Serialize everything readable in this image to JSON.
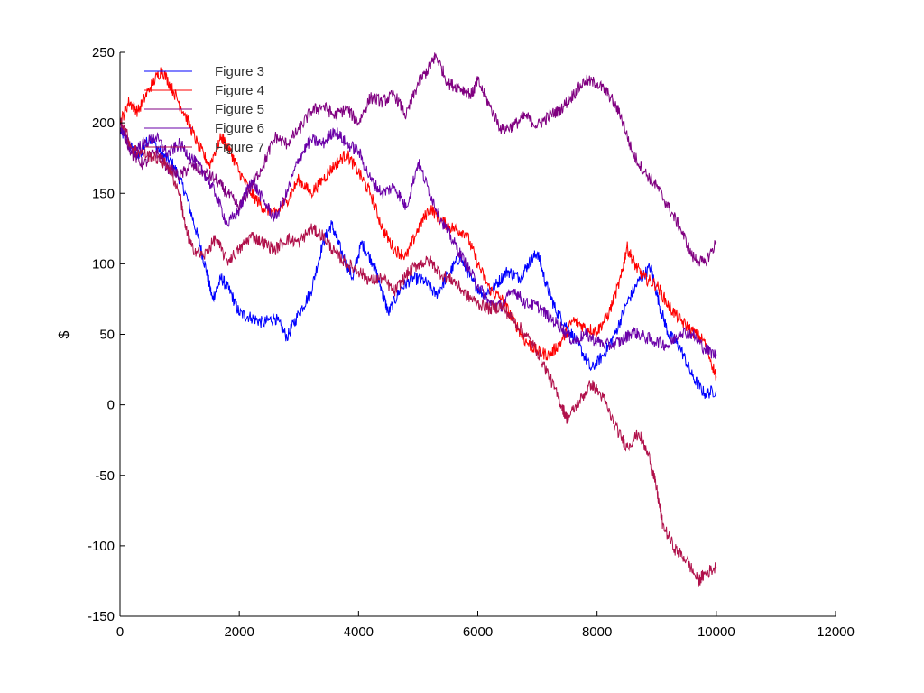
{
  "chart_data": {
    "type": "line",
    "title": "",
    "xlabel": "",
    "ylabel": "$",
    "xlim": [
      0,
      12000
    ],
    "ylim": [
      -150,
      250
    ],
    "xticks": [
      0,
      2000,
      4000,
      6000,
      8000,
      10000,
      12000
    ],
    "yticks": [
      -150,
      -100,
      -50,
      0,
      50,
      100,
      150,
      200,
      250
    ],
    "xtick_labels": [
      "0",
      "2000",
      "4000",
      "6000",
      "8000",
      "10000",
      "12000"
    ],
    "ytick_labels": [
      "-150",
      "-100",
      "-50",
      "0",
      "50",
      "100",
      "150",
      "200",
      "250"
    ],
    "grid": false,
    "legend_position": "top-left",
    "series": [
      {
        "name": "Figure 3",
        "color": "#0000ff",
        "points": [
          [
            0,
            195
          ],
          [
            150,
            185
          ],
          [
            300,
            175
          ],
          [
            500,
            190
          ],
          [
            700,
            178
          ],
          [
            900,
            170
          ],
          [
            1100,
            150
          ],
          [
            1300,
            120
          ],
          [
            1450,
            95
          ],
          [
            1550,
            75
          ],
          [
            1700,
            90
          ],
          [
            1850,
            80
          ],
          [
            2000,
            65
          ],
          [
            2200,
            62
          ],
          [
            2400,
            58
          ],
          [
            2600,
            62
          ],
          [
            2800,
            48
          ],
          [
            3000,
            65
          ],
          [
            3200,
            80
          ],
          [
            3400,
            115
          ],
          [
            3550,
            128
          ],
          [
            3700,
            110
          ],
          [
            3900,
            90
          ],
          [
            4050,
            115
          ],
          [
            4250,
            100
          ],
          [
            4400,
            80
          ],
          [
            4500,
            65
          ],
          [
            4700,
            82
          ],
          [
            4900,
            90
          ],
          [
            5100,
            88
          ],
          [
            5300,
            78
          ],
          [
            5500,
            92
          ],
          [
            5700,
            105
          ],
          [
            5900,
            88
          ],
          [
            6100,
            78
          ],
          [
            6300,
            85
          ],
          [
            6500,
            95
          ],
          [
            6700,
            90
          ],
          [
            6850,
            100
          ],
          [
            7000,
            108
          ],
          [
            7150,
            85
          ],
          [
            7300,
            68
          ],
          [
            7500,
            55
          ],
          [
            7700,
            42
          ],
          [
            7900,
            25
          ],
          [
            8100,
            35
          ],
          [
            8300,
            50
          ],
          [
            8500,
            72
          ],
          [
            8700,
            88
          ],
          [
            8900,
            98
          ],
          [
            9050,
            70
          ],
          [
            9200,
            50
          ],
          [
            9400,
            40
          ],
          [
            9600,
            20
          ],
          [
            9800,
            8
          ],
          [
            10000,
            10
          ]
        ]
      },
      {
        "name": "Figure 4",
        "color": "#ff0000",
        "points": [
          [
            0,
            200
          ],
          [
            150,
            215
          ],
          [
            300,
            208
          ],
          [
            500,
            225
          ],
          [
            700,
            238
          ],
          [
            900,
            222
          ],
          [
            1100,
            205
          ],
          [
            1300,
            185
          ],
          [
            1500,
            170
          ],
          [
            1700,
            190
          ],
          [
            1850,
            180
          ],
          [
            2000,
            165
          ],
          [
            2200,
            150
          ],
          [
            2400,
            140
          ],
          [
            2600,
            135
          ],
          [
            2800,
            145
          ],
          [
            3000,
            160
          ],
          [
            3200,
            150
          ],
          [
            3400,
            160
          ],
          [
            3600,
            170
          ],
          [
            3800,
            178
          ],
          [
            4000,
            165
          ],
          [
            4200,
            150
          ],
          [
            4400,
            125
          ],
          [
            4600,
            110
          ],
          [
            4800,
            105
          ],
          [
            5000,
            125
          ],
          [
            5200,
            140
          ],
          [
            5400,
            130
          ],
          [
            5600,
            125
          ],
          [
            5800,
            122
          ],
          [
            6000,
            100
          ],
          [
            6200,
            82
          ],
          [
            6400,
            75
          ],
          [
            6600,
            60
          ],
          [
            6800,
            45
          ],
          [
            7000,
            38
          ],
          [
            7200,
            35
          ],
          [
            7400,
            45
          ],
          [
            7600,
            60
          ],
          [
            7800,
            55
          ],
          [
            8000,
            52
          ],
          [
            8200,
            65
          ],
          [
            8400,
            90
          ],
          [
            8500,
            112
          ],
          [
            8650,
            98
          ],
          [
            8800,
            90
          ],
          [
            9000,
            85
          ],
          [
            9200,
            70
          ],
          [
            9400,
            60
          ],
          [
            9600,
            52
          ],
          [
            9800,
            45
          ],
          [
            10000,
            20
          ]
        ]
      },
      {
        "name": "Figure 5",
        "color": "#800080",
        "points": [
          [
            0,
            200
          ],
          [
            200,
            178
          ],
          [
            400,
            170
          ],
          [
            600,
            180
          ],
          [
            800,
            168
          ],
          [
            1000,
            162
          ],
          [
            1200,
            170
          ],
          [
            1400,
            165
          ],
          [
            1600,
            160
          ],
          [
            1800,
            150
          ],
          [
            2000,
            140
          ],
          [
            2200,
            155
          ],
          [
            2400,
            170
          ],
          [
            2600,
            190
          ],
          [
            2800,
            185
          ],
          [
            3000,
            195
          ],
          [
            3200,
            208
          ],
          [
            3400,
            212
          ],
          [
            3600,
            205
          ],
          [
            3800,
            210
          ],
          [
            4000,
            200
          ],
          [
            4200,
            218
          ],
          [
            4400,
            215
          ],
          [
            4600,
            220
          ],
          [
            4800,
            205
          ],
          [
            5000,
            228
          ],
          [
            5200,
            240
          ],
          [
            5300,
            248
          ],
          [
            5500,
            228
          ],
          [
            5700,
            225
          ],
          [
            5900,
            220
          ],
          [
            6000,
            230
          ],
          [
            6200,
            212
          ],
          [
            6400,
            195
          ],
          [
            6600,
            198
          ],
          [
            6800,
            205
          ],
          [
            7000,
            198
          ],
          [
            7200,
            205
          ],
          [
            7400,
            210
          ],
          [
            7600,
            220
          ],
          [
            7800,
            230
          ],
          [
            8000,
            228
          ],
          [
            8200,
            220
          ],
          [
            8400,
            205
          ],
          [
            8600,
            178
          ],
          [
            8800,
            165
          ],
          [
            9000,
            155
          ],
          [
            9200,
            140
          ],
          [
            9400,
            125
          ],
          [
            9600,
            105
          ],
          [
            9800,
            100
          ],
          [
            10000,
            115
          ]
        ]
      },
      {
        "name": "Figure 6",
        "color": "#6a00a8",
        "points": [
          [
            0,
            198
          ],
          [
            200,
            180
          ],
          [
            400,
            185
          ],
          [
            600,
            190
          ],
          [
            800,
            178
          ],
          [
            1000,
            185
          ],
          [
            1200,
            175
          ],
          [
            1400,
            165
          ],
          [
            1600,
            150
          ],
          [
            1800,
            128
          ],
          [
            2000,
            138
          ],
          [
            2200,
            160
          ],
          [
            2400,
            145
          ],
          [
            2600,
            132
          ],
          [
            2800,
            150
          ],
          [
            3000,
            175
          ],
          [
            3200,
            188
          ],
          [
            3400,
            185
          ],
          [
            3600,
            195
          ],
          [
            3800,
            185
          ],
          [
            4000,
            180
          ],
          [
            4200,
            160
          ],
          [
            4400,
            150
          ],
          [
            4600,
            155
          ],
          [
            4800,
            140
          ],
          [
            5000,
            172
          ],
          [
            5200,
            150
          ],
          [
            5400,
            130
          ],
          [
            5600,
            115
          ],
          [
            5800,
            100
          ],
          [
            6000,
            85
          ],
          [
            6200,
            72
          ],
          [
            6400,
            70
          ],
          [
            6600,
            82
          ],
          [
            6800,
            72
          ],
          [
            7000,
            70
          ],
          [
            7200,
            62
          ],
          [
            7400,
            55
          ],
          [
            7600,
            45
          ],
          [
            7800,
            50
          ],
          [
            8000,
            45
          ],
          [
            8200,
            42
          ],
          [
            8400,
            45
          ],
          [
            8600,
            52
          ],
          [
            8800,
            48
          ],
          [
            9000,
            45
          ],
          [
            9200,
            42
          ],
          [
            9400,
            52
          ],
          [
            9600,
            50
          ],
          [
            9800,
            40
          ],
          [
            10000,
            35
          ]
        ]
      },
      {
        "name": "Figure 7",
        "color": "#b0104a",
        "points": [
          [
            0,
            205
          ],
          [
            200,
            182
          ],
          [
            400,
            178
          ],
          [
            600,
            175
          ],
          [
            800,
            170
          ],
          [
            1000,
            150
          ],
          [
            1100,
            125
          ],
          [
            1200,
            112
          ],
          [
            1400,
            105
          ],
          [
            1600,
            118
          ],
          [
            1800,
            102
          ],
          [
            2000,
            110
          ],
          [
            2200,
            120
          ],
          [
            2400,
            115
          ],
          [
            2600,
            110
          ],
          [
            2800,
            118
          ],
          [
            3000,
            115
          ],
          [
            3200,
            125
          ],
          [
            3400,
            120
          ],
          [
            3600,
            108
          ],
          [
            3800,
            100
          ],
          [
            4000,
            95
          ],
          [
            4200,
            88
          ],
          [
            4400,
            90
          ],
          [
            4600,
            80
          ],
          [
            4800,
            92
          ],
          [
            5000,
            100
          ],
          [
            5200,
            102
          ],
          [
            5400,
            92
          ],
          [
            5600,
            88
          ],
          [
            5800,
            78
          ],
          [
            6000,
            72
          ],
          [
            6200,
            68
          ],
          [
            6400,
            70
          ],
          [
            6600,
            60
          ],
          [
            6800,
            50
          ],
          [
            7000,
            38
          ],
          [
            7200,
            20
          ],
          [
            7400,
            0
          ],
          [
            7500,
            -10
          ],
          [
            7700,
            2
          ],
          [
            7900,
            15
          ],
          [
            8100,
            5
          ],
          [
            8300,
            -15
          ],
          [
            8500,
            -30
          ],
          [
            8700,
            -20
          ],
          [
            8900,
            -40
          ],
          [
            9000,
            -60
          ],
          [
            9100,
            -85
          ],
          [
            9300,
            -102
          ],
          [
            9500,
            -110
          ],
          [
            9700,
            -125
          ],
          [
            9800,
            -120
          ],
          [
            10000,
            -115
          ]
        ]
      }
    ]
  }
}
